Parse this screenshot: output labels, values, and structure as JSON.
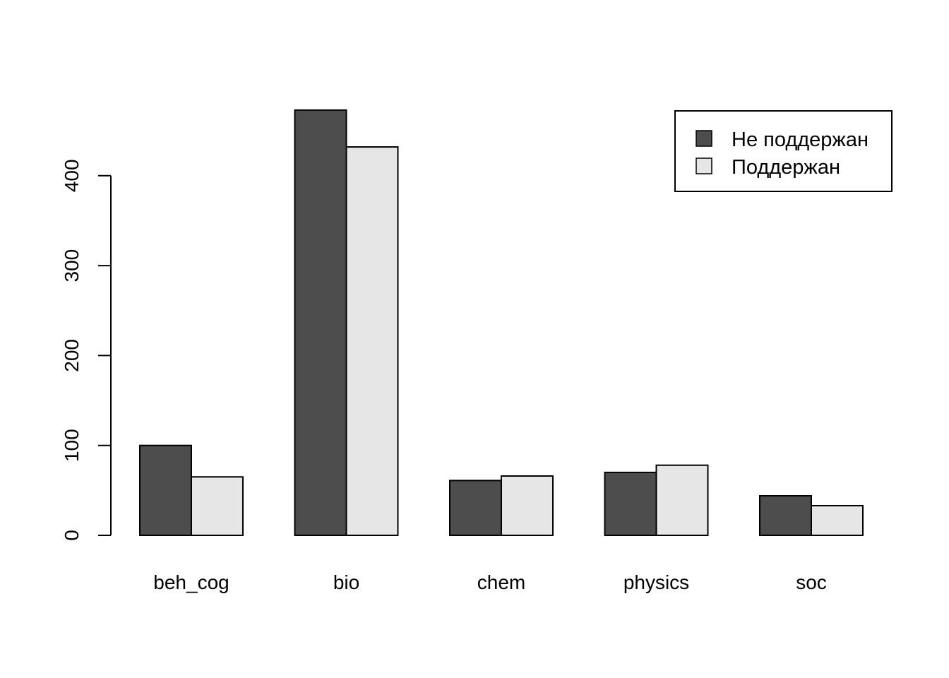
{
  "chart_data": {
    "type": "bar",
    "mode": "grouped",
    "categories": [
      "beh_cog",
      "bio",
      "chem",
      "physics",
      "soc"
    ],
    "series": [
      {
        "name": "Не поддержан",
        "values": [
          100,
          473,
          61,
          70,
          44
        ],
        "color": "#4d4d4d"
      },
      {
        "name": "Поддержан",
        "values": [
          65,
          432,
          66,
          78,
          33
        ],
        "color": "#e6e6e6"
      }
    ],
    "title": "",
    "xlabel": "",
    "ylabel": "",
    "yticks": [
      0,
      100,
      200,
      300,
      400
    ],
    "ylim": [
      0,
      473
    ],
    "grid": false,
    "legend": {
      "position": "top-right"
    }
  }
}
